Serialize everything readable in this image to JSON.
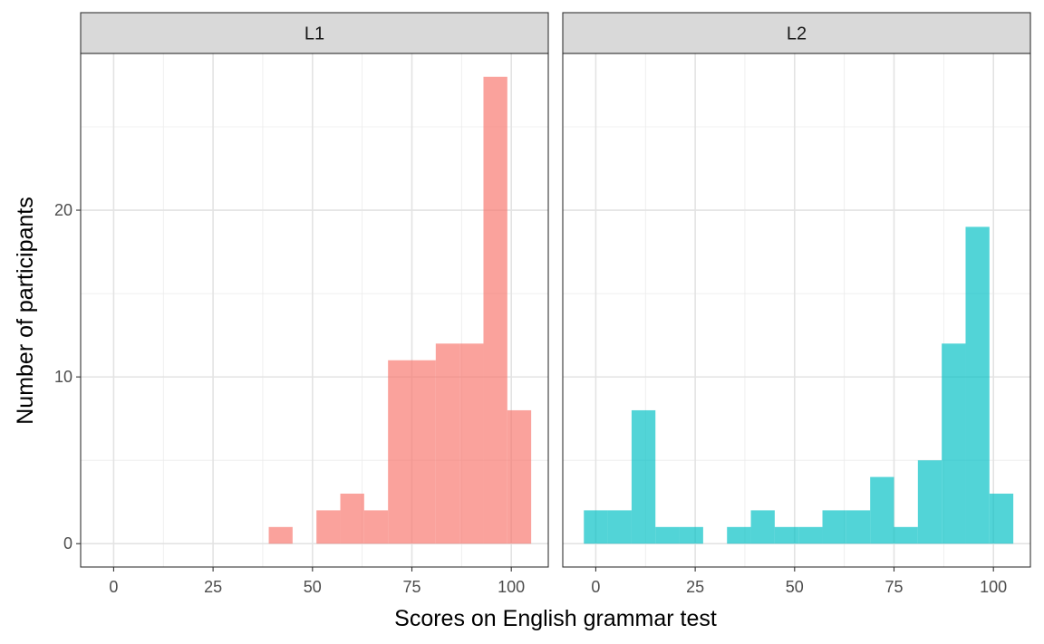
{
  "chart_data": {
    "type": "bar",
    "xlabel": "Scores on English grammar test",
    "ylabel": "Number of participants",
    "xlim": [
      -8.3,
      109.3
    ],
    "ylim": [
      0,
      29.4
    ],
    "x_ticks": [
      0,
      25,
      50,
      75,
      100
    ],
    "y_ticks": [
      0,
      10,
      20
    ],
    "bin_width": 6.0,
    "grid": true,
    "colors": {
      "L1": "#F8766D",
      "L2": "#00BFC4"
    },
    "panels": [
      {
        "name": "L1",
        "bins": [
          {
            "x0": 39,
            "x1": 45,
            "count": 1
          },
          {
            "x0": 45,
            "x1": 51,
            "count": 0
          },
          {
            "x0": 51,
            "x1": 57,
            "count": 2
          },
          {
            "x0": 57,
            "x1": 63,
            "count": 3
          },
          {
            "x0": 63,
            "x1": 69,
            "count": 2
          },
          {
            "x0": 69,
            "x1": 75,
            "count": 11
          },
          {
            "x0": 75,
            "x1": 81,
            "count": 11
          },
          {
            "x0": 81,
            "x1": 87,
            "count": 12
          },
          {
            "x0": 87,
            "x1": 93,
            "count": 12
          },
          {
            "x0": 93,
            "x1": 99,
            "count": 28
          },
          {
            "x0": 99,
            "x1": 105,
            "count": 8
          }
        ]
      },
      {
        "name": "L2",
        "bins": [
          {
            "x0": -3,
            "x1": 3,
            "count": 2
          },
          {
            "x0": 3,
            "x1": 9,
            "count": 2
          },
          {
            "x0": 9,
            "x1": 15,
            "count": 8
          },
          {
            "x0": 15,
            "x1": 21,
            "count": 1
          },
          {
            "x0": 21,
            "x1": 27,
            "count": 1
          },
          {
            "x0": 27,
            "x1": 33,
            "count": 0
          },
          {
            "x0": 33,
            "x1": 39,
            "count": 1
          },
          {
            "x0": 39,
            "x1": 45,
            "count": 2
          },
          {
            "x0": 45,
            "x1": 51,
            "count": 1
          },
          {
            "x0": 51,
            "x1": 57,
            "count": 1
          },
          {
            "x0": 57,
            "x1": 63,
            "count": 2
          },
          {
            "x0": 63,
            "x1": 69,
            "count": 2
          },
          {
            "x0": 69,
            "x1": 75,
            "count": 4
          },
          {
            "x0": 75,
            "x1": 81,
            "count": 1
          },
          {
            "x0": 81,
            "x1": 87,
            "count": 5
          },
          {
            "x0": 87,
            "x1": 93,
            "count": 12
          },
          {
            "x0": 93,
            "x1": 99,
            "count": 19
          },
          {
            "x0": 99,
            "x1": 105,
            "count": 3
          }
        ]
      }
    ]
  }
}
